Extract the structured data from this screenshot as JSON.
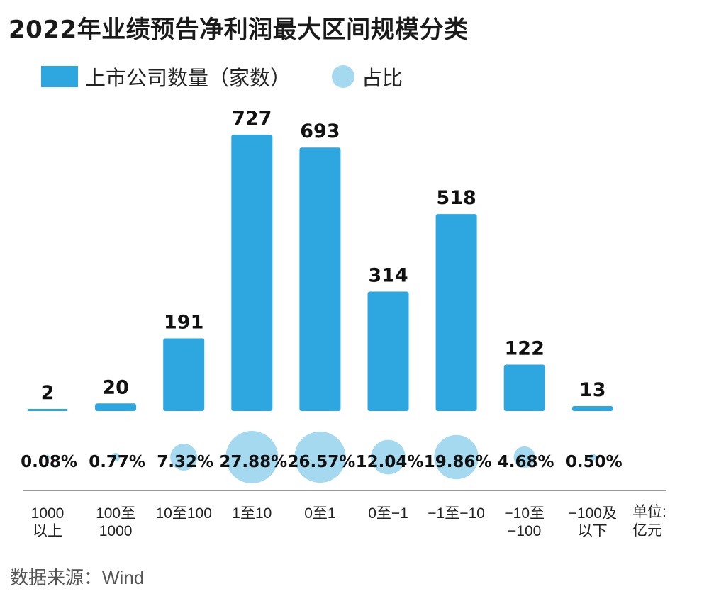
{
  "title": "2022年业绩预告净利润最大区间规模分类",
  "legend": {
    "bar_label": "上市公司数量（家数）",
    "dot_label": "占比"
  },
  "colors": {
    "bar": "#2ea6e0",
    "dot": "#a4d9ef",
    "axis": "#999999"
  },
  "unit_label": [
    "单位:",
    "亿元"
  ],
  "source": "数据来源：Wind",
  "chart_data": {
    "type": "bar",
    "title": "2022年业绩预告净利润最大区间规模分类",
    "categories": [
      [
        "1000",
        "以上"
      ],
      [
        "100至",
        "1000"
      ],
      [
        "10至100"
      ],
      [
        "1至10"
      ],
      [
        "0至1"
      ],
      [
        "0至−1"
      ],
      [
        "−1至−10"
      ],
      [
        "−10至",
        "−100"
      ],
      [
        "−100及",
        "以下"
      ]
    ],
    "series": [
      {
        "name": "上市公司数量（家数）",
        "values": [
          2,
          20,
          191,
          727,
          693,
          314,
          518,
          122,
          13
        ]
      },
      {
        "name": "占比",
        "values": [
          "0.08%",
          "0.77%",
          "7.32%",
          "27.88%",
          "26.57%",
          "12.04%",
          "19.86%",
          "4.68%",
          "0.50%"
        ],
        "numeric": [
          0.08,
          0.77,
          7.32,
          27.88,
          26.57,
          12.04,
          19.86,
          4.68,
          0.5
        ]
      }
    ],
    "ylim": [
      0,
      727
    ],
    "grid": false,
    "legend_position": "top-left"
  }
}
